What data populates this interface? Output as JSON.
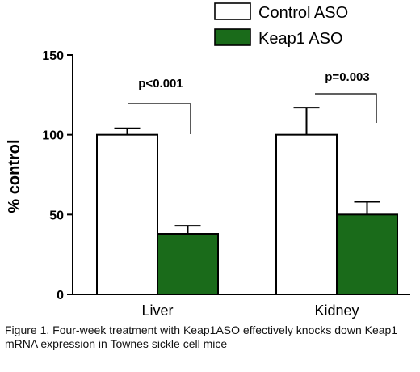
{
  "chart_data": {
    "type": "bar",
    "categories": [
      "Liver",
      "Kidney"
    ],
    "series": [
      {
        "name": "Control ASO",
        "values": [
          100,
          100
        ],
        "errors": [
          4,
          17
        ],
        "color": "#ffffff"
      },
      {
        "name": "Keap1 ASO",
        "values": [
          38,
          50
        ],
        "errors": [
          5,
          8
        ],
        "color": "#1a6b1a"
      }
    ],
    "ylabel": "% control",
    "xlabel": "",
    "ylim": [
      0,
      150
    ],
    "yticks": [
      "0",
      "50",
      "100",
      "150"
    ],
    "annotations": [
      "p<0.001",
      "p=0.003"
    ],
    "legend_placement": "top",
    "grid": false
  },
  "caption": "Figure 1.  Four-week treatment with Keap1ASO effectively knocks down Keap1 mRNA expression in Townes sickle cell mice"
}
